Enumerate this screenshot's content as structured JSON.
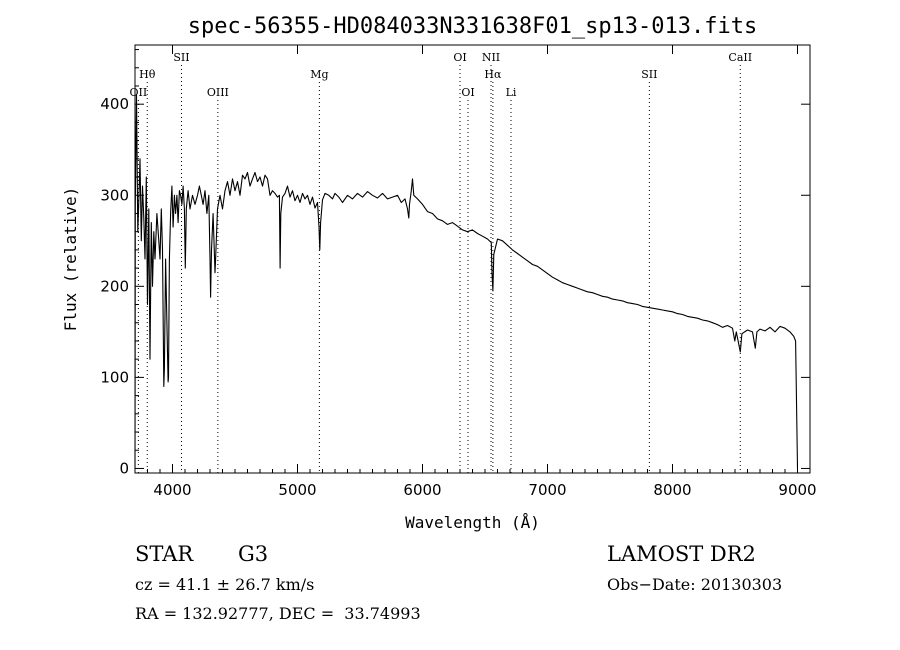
{
  "chart_data": {
    "type": "line",
    "title": "spec-56355-HD084033N331638F01_sp13-013.fits",
    "xlabel": "Wavelength (Å)",
    "ylabel": "Flux (relative)",
    "xlim": [
      3700,
      9100
    ],
    "ylim": [
      -5,
      465
    ],
    "xticks": [
      4000,
      5000,
      6000,
      7000,
      8000,
      9000
    ],
    "yticks": [
      0,
      100,
      200,
      300,
      400
    ],
    "line_color": "#000000",
    "series": [
      {
        "points": [
          [
            3700,
            0
          ],
          [
            3702,
            290
          ],
          [
            3712,
            410
          ],
          [
            3722,
            260
          ],
          [
            3732,
            300
          ],
          [
            3740,
            340
          ],
          [
            3750,
            250
          ],
          [
            3760,
            310
          ],
          [
            3770,
            275
          ],
          [
            3780,
            230
          ],
          [
            3790,
            320
          ],
          [
            3800,
            180
          ],
          [
            3810,
            285
          ],
          [
            3820,
            120
          ],
          [
            3830,
            270
          ],
          [
            3840,
            200
          ],
          [
            3850,
            260
          ],
          [
            3860,
            230
          ],
          [
            3875,
            280
          ],
          [
            3890,
            250
          ],
          [
            3900,
            230
          ],
          [
            3910,
            285
          ],
          [
            3920,
            240
          ],
          [
            3930,
            90
          ],
          [
            3935,
            110
          ],
          [
            3945,
            230
          ],
          [
            3955,
            160
          ],
          [
            3965,
            95
          ],
          [
            3968,
            100
          ],
          [
            3975,
            230
          ],
          [
            3985,
            280
          ],
          [
            3995,
            310
          ],
          [
            4005,
            265
          ],
          [
            4015,
            300
          ],
          [
            4025,
            280
          ],
          [
            4035,
            300
          ],
          [
            4045,
            270
          ],
          [
            4055,
            305
          ],
          [
            4065,
            300
          ],
          [
            4075,
            290
          ],
          [
            4085,
            310
          ],
          [
            4095,
            285
          ],
          [
            4102,
            220
          ],
          [
            4110,
            285
          ],
          [
            4125,
            305
          ],
          [
            4140,
            285
          ],
          [
            4160,
            300
          ],
          [
            4180,
            290
          ],
          [
            4200,
            300
          ],
          [
            4215,
            310
          ],
          [
            4230,
            300
          ],
          [
            4245,
            290
          ],
          [
            4260,
            305
          ],
          [
            4275,
            280
          ],
          [
            4290,
            300
          ],
          [
            4300,
            230
          ],
          [
            4305,
            188
          ],
          [
            4312,
            240
          ],
          [
            4325,
            280
          ],
          [
            4340,
            215
          ],
          [
            4345,
            230
          ],
          [
            4360,
            285
          ],
          [
            4380,
            300
          ],
          [
            4400,
            285
          ],
          [
            4420,
            305
          ],
          [
            4440,
            315
          ],
          [
            4460,
            300
          ],
          [
            4480,
            318
          ],
          [
            4500,
            305
          ],
          [
            4520,
            315
          ],
          [
            4540,
            300
          ],
          [
            4560,
            322
          ],
          [
            4580,
            318
          ],
          [
            4600,
            325
          ],
          [
            4620,
            310
          ],
          [
            4640,
            318
          ],
          [
            4660,
            325
          ],
          [
            4680,
            315
          ],
          [
            4700,
            320
          ],
          [
            4720,
            310
          ],
          [
            4740,
            322
          ],
          [
            4760,
            318
          ],
          [
            4780,
            300
          ],
          [
            4800,
            305
          ],
          [
            4820,
            302
          ],
          [
            4840,
            298
          ],
          [
            4855,
            300
          ],
          [
            4861,
            220
          ],
          [
            4866,
            280
          ],
          [
            4880,
            298
          ],
          [
            4900,
            302
          ],
          [
            4920,
            310
          ],
          [
            4940,
            298
          ],
          [
            4960,
            305
          ],
          [
            4980,
            294
          ],
          [
            5000,
            300
          ],
          [
            5020,
            292
          ],
          [
            5040,
            302
          ],
          [
            5060,
            296
          ],
          [
            5080,
            300
          ],
          [
            5100,
            290
          ],
          [
            5120,
            298
          ],
          [
            5140,
            286
          ],
          [
            5160,
            292
          ],
          [
            5172,
            265
          ],
          [
            5178,
            240
          ],
          [
            5185,
            270
          ],
          [
            5200,
            295
          ],
          [
            5220,
            302
          ],
          [
            5250,
            300
          ],
          [
            5280,
            296
          ],
          [
            5300,
            302
          ],
          [
            5330,
            298
          ],
          [
            5360,
            292
          ],
          [
            5400,
            300
          ],
          [
            5440,
            296
          ],
          [
            5480,
            302
          ],
          [
            5520,
            298
          ],
          [
            5560,
            304
          ],
          [
            5600,
            300
          ],
          [
            5640,
            297
          ],
          [
            5680,
            302
          ],
          [
            5720,
            296
          ],
          [
            5760,
            298
          ],
          [
            5800,
            300
          ],
          [
            5830,
            292
          ],
          [
            5860,
            296
          ],
          [
            5880,
            285
          ],
          [
            5890,
            275
          ],
          [
            5896,
            290
          ],
          [
            5910,
            305
          ],
          [
            5920,
            318
          ],
          [
            5930,
            300
          ],
          [
            5960,
            296
          ],
          [
            6000,
            290
          ],
          [
            6040,
            282
          ],
          [
            6080,
            280
          ],
          [
            6120,
            274
          ],
          [
            6160,
            272
          ],
          [
            6200,
            268
          ],
          [
            6240,
            270
          ],
          [
            6280,
            266
          ],
          [
            6320,
            262
          ],
          [
            6360,
            260
          ],
          [
            6400,
            262
          ],
          [
            6440,
            258
          ],
          [
            6480,
            255
          ],
          [
            6520,
            252
          ],
          [
            6550,
            248
          ],
          [
            6556,
            215
          ],
          [
            6563,
            195
          ],
          [
            6570,
            235
          ],
          [
            6600,
            252
          ],
          [
            6640,
            250
          ],
          [
            6680,
            245
          ],
          [
            6720,
            240
          ],
          [
            6760,
            236
          ],
          [
            6800,
            232
          ],
          [
            6840,
            228
          ],
          [
            6880,
            224
          ],
          [
            6920,
            222
          ],
          [
            6960,
            218
          ],
          [
            7000,
            214
          ],
          [
            7040,
            210
          ],
          [
            7080,
            207
          ],
          [
            7120,
            204
          ],
          [
            7160,
            202
          ],
          [
            7200,
            200
          ],
          [
            7240,
            198
          ],
          [
            7280,
            196
          ],
          [
            7320,
            194
          ],
          [
            7360,
            193
          ],
          [
            7400,
            191
          ],
          [
            7440,
            189
          ],
          [
            7480,
            188
          ],
          [
            7520,
            186
          ],
          [
            7560,
            185
          ],
          [
            7600,
            184
          ],
          [
            7640,
            182
          ],
          [
            7680,
            181
          ],
          [
            7720,
            180
          ],
          [
            7760,
            178
          ],
          [
            7800,
            177
          ],
          [
            7840,
            176
          ],
          [
            7880,
            175
          ],
          [
            7920,
            174
          ],
          [
            7960,
            173
          ],
          [
            8000,
            172
          ],
          [
            8040,
            170
          ],
          [
            8080,
            169
          ],
          [
            8120,
            167
          ],
          [
            8160,
            166
          ],
          [
            8200,
            165
          ],
          [
            8240,
            163
          ],
          [
            8280,
            162
          ],
          [
            8320,
            160
          ],
          [
            8360,
            158
          ],
          [
            8400,
            155
          ],
          [
            8440,
            157
          ],
          [
            8480,
            154
          ],
          [
            8498,
            140
          ],
          [
            8510,
            150
          ],
          [
            8542,
            128
          ],
          [
            8555,
            148
          ],
          [
            8600,
            152
          ],
          [
            8640,
            150
          ],
          [
            8662,
            132
          ],
          [
            8675,
            150
          ],
          [
            8700,
            153
          ],
          [
            8740,
            151
          ],
          [
            8780,
            155
          ],
          [
            8820,
            150
          ],
          [
            8860,
            156
          ],
          [
            8900,
            154
          ],
          [
            8940,
            150
          ],
          [
            8970,
            145
          ],
          [
            8985,
            140
          ],
          [
            9000,
            0
          ]
        ]
      }
    ],
    "lines": [
      {
        "label": "Hθ",
        "x": 3798,
        "row": 1
      },
      {
        "label": "OII",
        "x": 3727,
        "row": 2
      },
      {
        "label": "SII",
        "x": 4072,
        "row": 0
      },
      {
        "label": "OIII",
        "x": 4363,
        "row": 2
      },
      {
        "label": "Mg",
        "x": 5175,
        "row": 1
      },
      {
        "label": "OI",
        "x": 6300,
        "row": 0
      },
      {
        "label": "OI",
        "x": 6364,
        "row": 2
      },
      {
        "label": "NII",
        "x": 6548,
        "row": 0
      },
      {
        "label": "Hα",
        "x": 6563,
        "row": 1
      },
      {
        "label": "Li",
        "x": 6708,
        "row": 2
      },
      {
        "label": "SII",
        "x": 7815,
        "row": 1
      },
      {
        "label": "CaII",
        "x": 8542,
        "row": 0
      }
    ]
  },
  "info": {
    "class_label": "STAR",
    "subclass": "G3",
    "survey": "LAMOST DR2",
    "redshift_line": "cz = 41.1 ± 26.7 km/s",
    "obs_date_line": "Obs−Date: 20130303",
    "coords_line": "RA = 132.92777, DEC =  33.74993"
  }
}
